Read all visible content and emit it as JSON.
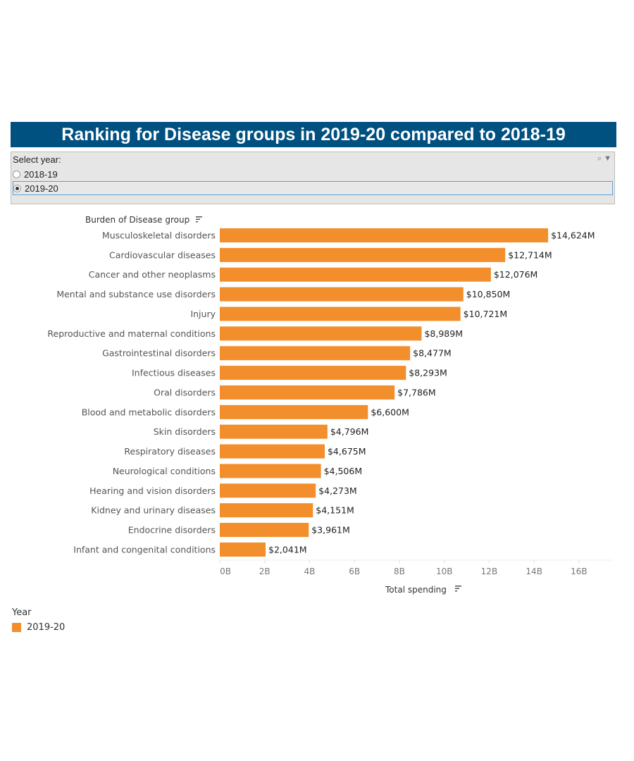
{
  "title": "Ranking for Disease groups in 2019-20 compared to 2018-19",
  "filter": {
    "label": "Select year:",
    "options": [
      "2018-19",
      "2019-20"
    ],
    "selected": "2019-20",
    "icons": [
      "search-icon",
      "dropdown-arrow-icon"
    ]
  },
  "legend": {
    "title": "Year",
    "items": [
      {
        "label": "2019-20",
        "color": "#f28e2b"
      }
    ]
  },
  "chart_data": {
    "type": "bar",
    "orientation": "horizontal",
    "ylabel": "Burden of Disease group",
    "xlabel": "Total spending",
    "xlim": [
      0,
      17.5
    ],
    "x_unit": "B",
    "ticks": [
      "0B",
      "2B",
      "4B",
      "6B",
      "8B",
      "10B",
      "12B",
      "14B",
      "16B"
    ],
    "tick_values": [
      0,
      2,
      4,
      6,
      8,
      10,
      12,
      14,
      16
    ],
    "grid": false,
    "bar_color": "#f28e2b",
    "categories": [
      "Musculoskeletal disorders",
      "Cardiovascular diseases",
      "Cancer and other neoplasms",
      "Mental and substance use disorders",
      "Injury",
      "Reproductive and maternal conditions",
      "Gastrointestinal disorders",
      "Infectious diseases",
      "Oral disorders",
      "Blood and metabolic disorders",
      "Skin disorders",
      "Respiratory diseases",
      "Neurological conditions",
      "Hearing and vision disorders",
      "Kidney and urinary diseases",
      "Endocrine disorders",
      "Infant and congenital conditions"
    ],
    "values": [
      14624,
      12714,
      12076,
      10850,
      10721,
      8989,
      8477,
      8293,
      7786,
      6600,
      4796,
      4675,
      4506,
      4273,
      4151,
      3961,
      2041
    ],
    "value_unit": "$M",
    "labels": [
      "$14,624M",
      "$12,714M",
      "$12,076M",
      "$10,850M",
      "$10,721M",
      "$8,989M",
      "$8,477M",
      "$8,293M",
      "$7,786M",
      "$6,600M",
      "$4,796M",
      "$4,675M",
      "$4,506M",
      "$4,273M",
      "$4,151M",
      "$3,961M",
      "$2,041M"
    ]
  }
}
